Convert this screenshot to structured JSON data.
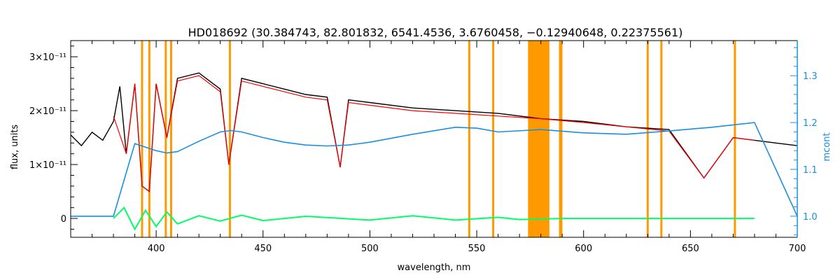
{
  "chart_data": {
    "type": "line",
    "title": "HD018692    (30.384743, 82.801832, 6541.4536, 3.6760458, −0.12940648, 0.22375561)",
    "xlabel": "wavelength, nm",
    "ylabel": "flux, units",
    "y2label": "mcont",
    "xlim": [
      360,
      700
    ],
    "ylim": [
      -3.5e-12,
      3.3e-11
    ],
    "y2lim": [
      0.955,
      1.375
    ],
    "x_ticks": [
      400,
      450,
      500,
      550,
      600,
      650,
      700
    ],
    "x_tick_labels": [
      "400",
      "450",
      "500",
      "550",
      "600",
      "650",
      "700"
    ],
    "y_ticks": [
      0,
      1e-11,
      2e-11,
      3e-11
    ],
    "y_tick_labels": [
      "0",
      "1×10⁻¹¹",
      "2×10⁻¹¹",
      "3×10⁻¹¹"
    ],
    "y2_ticks": [
      1.0,
      1.1,
      1.2,
      1.3
    ],
    "y2_tick_labels": [
      "1.0",
      "1.1",
      "1.2",
      "1.3"
    ],
    "grid": false,
    "colors": {
      "observed": "#000000",
      "model": "#ff0000",
      "residual": "#00ff66",
      "continuum": "#1a8fe0",
      "masks": "#ff9900",
      "highlight": "#ffff00"
    },
    "mask_lines_nm": [
      393.4,
      396.8,
      404.5,
      407.0,
      434.5,
      546.5,
      557.7,
      589.0,
      589.6,
      630.0,
      636.4,
      670.8
    ],
    "mask_band_nm": [
      574,
      584
    ],
    "observed_flux": {
      "x": [
        360,
        365,
        370,
        375,
        380,
        383,
        386,
        390,
        393.4,
        396.8,
        400,
        405,
        410,
        420,
        430,
        434,
        440,
        450,
        460,
        470,
        480,
        486.1,
        490,
        500,
        520,
        540,
        560,
        580,
        600,
        620,
        640,
        656.3,
        670,
        690,
        700
      ],
      "y": [
        1.55e-11,
        1.35e-11,
        1.6e-11,
        1.45e-11,
        1.8e-11,
        2.45e-11,
        1.2e-11,
        2.5e-11,
        6e-12,
        5e-12,
        2.5e-11,
        1.5e-11,
        2.6e-11,
        2.7e-11,
        2.4e-11,
        1e-11,
        2.6e-11,
        2.5e-11,
        2.4e-11,
        2.3e-11,
        2.25e-11,
        9.5e-12,
        2.2e-11,
        2.15e-11,
        2.05e-11,
        2e-11,
        1.95e-11,
        1.85e-11,
        1.8e-11,
        1.7e-11,
        1.65e-11,
        7.5e-12,
        1.5e-11,
        1.4e-11,
        1.35e-11
      ]
    },
    "model_flux": {
      "x": [
        380,
        386,
        390,
        393.4,
        396.8,
        400,
        405,
        410,
        420,
        430,
        434,
        440,
        450,
        460,
        470,
        480,
        486.1,
        490,
        500,
        520,
        540,
        560,
        580,
        600,
        620,
        640,
        656.3,
        670,
        680
      ],
      "y": [
        1.9e-11,
        1.2e-11,
        2.5e-11,
        6e-12,
        5e-12,
        2.5e-11,
        1.5e-11,
        2.55e-11,
        2.65e-11,
        2.35e-11,
        1e-11,
        2.55e-11,
        2.45e-11,
        2.35e-11,
        2.25e-11,
        2.2e-11,
        9.5e-12,
        2.15e-11,
        2.1e-11,
        2e-11,
        1.95e-11,
        1.9e-11,
        1.85e-11,
        1.78e-11,
        1.7e-11,
        1.62e-11,
        7.5e-12,
        1.5e-11,
        1.45e-11
      ]
    },
    "continuum": {
      "x": [
        360,
        380,
        390,
        400,
        405,
        410,
        420,
        430,
        435,
        440,
        450,
        460,
        470,
        480,
        490,
        500,
        520,
        540,
        550,
        560,
        580,
        600,
        620,
        640,
        660,
        670,
        680,
        700
      ],
      "y": [
        1.0,
        1.0,
        1.155,
        1.14,
        1.135,
        1.138,
        1.16,
        1.18,
        1.183,
        1.18,
        1.168,
        1.158,
        1.152,
        1.15,
        1.152,
        1.158,
        1.175,
        1.19,
        1.188,
        1.18,
        1.185,
        1.178,
        1.175,
        1.182,
        1.19,
        1.195,
        1.2,
        1.0
      ]
    },
    "residual": {
      "x": [
        380,
        385,
        390,
        395,
        400,
        405,
        410,
        420,
        430,
        440,
        450,
        470,
        500,
        520,
        540,
        560,
        570,
        590,
        600,
        620,
        640,
        660,
        680
      ],
      "y": [
        0.0,
        2e-12,
        -2e-12,
        1.5e-12,
        -1.5e-12,
        1.2e-12,
        -1e-12,
        5e-13,
        -5e-13,
        6e-13,
        -4e-13,
        4e-13,
        -3e-13,
        5e-13,
        -3e-13,
        2e-13,
        -2e-13,
        0.0,
        0.0,
        0.0,
        0.0,
        0.0,
        0.0
      ]
    }
  }
}
